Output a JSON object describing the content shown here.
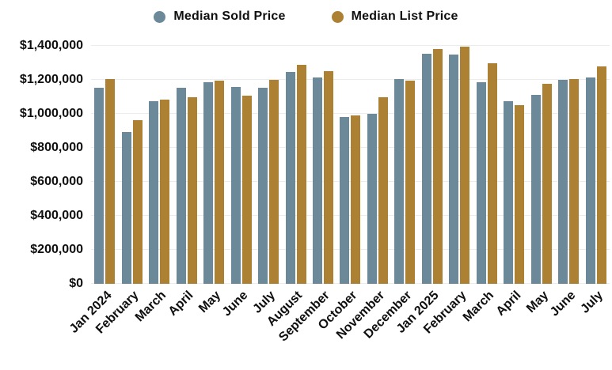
{
  "chart_data": {
    "type": "bar",
    "title": "",
    "categories": [
      "Jan 2024",
      "February",
      "March",
      "April",
      "May",
      "June",
      "July",
      "August",
      "September",
      "October",
      "November",
      "December",
      "Jan 2025",
      "February",
      "March",
      "April",
      "May",
      "June",
      "July"
    ],
    "series": [
      {
        "name": "Median Sold Price",
        "color": "#6b8999",
        "values": [
          1155000,
          895000,
          1075000,
          1155000,
          1185000,
          1160000,
          1155000,
          1245000,
          1215000,
          980000,
          1000000,
          1205000,
          1355000,
          1350000,
          1185000,
          1075000,
          1110000,
          1200000,
          1215000
        ]
      },
      {
        "name": "Median List Price",
        "color": "#ad8134",
        "values": [
          1205000,
          965000,
          1085000,
          1100000,
          1195000,
          1105000,
          1200000,
          1290000,
          1250000,
          990000,
          1100000,
          1195000,
          1380000,
          1395000,
          1300000,
          1050000,
          1175000,
          1205000,
          1280000
        ]
      }
    ],
    "xlabel": "",
    "ylabel": "",
    "ylim": [
      0,
      1400000
    ],
    "ytick_step": 200000,
    "ytick_labels": [
      "$0",
      "$200,000",
      "$400,000",
      "$600,000",
      "$800,000",
      "$1,000,000",
      "$1,200,000",
      "$1,400,000"
    ],
    "grid": true,
    "legend_position": "top"
  }
}
